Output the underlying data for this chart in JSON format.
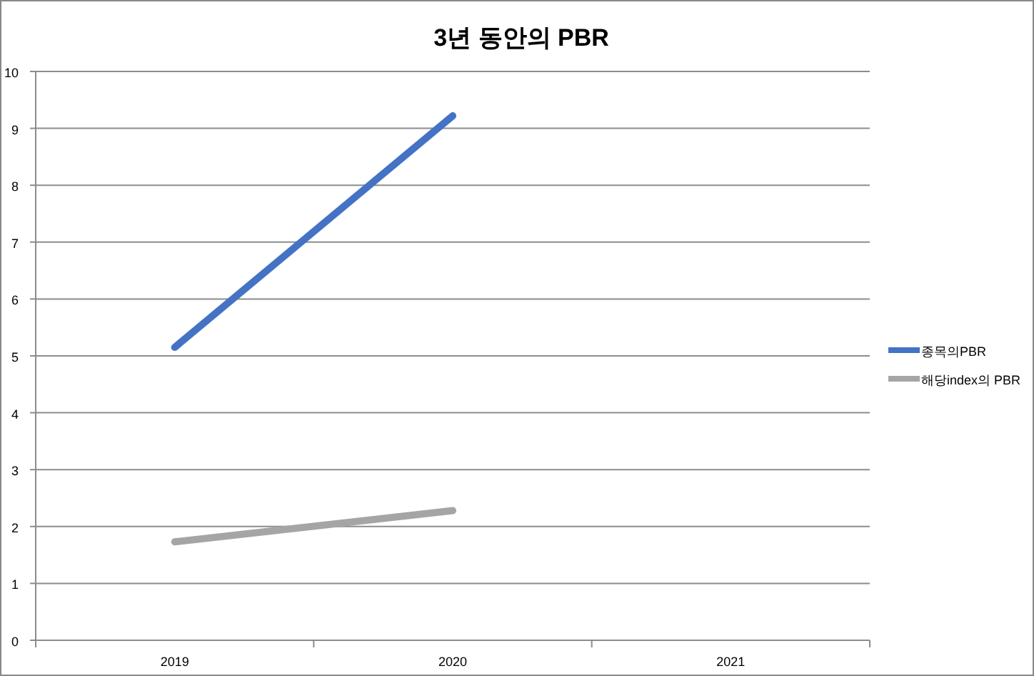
{
  "chart_data": {
    "type": "line",
    "title": "3년 동안의 PBR",
    "categories": [
      "2019",
      "2020",
      "2021"
    ],
    "series": [
      {
        "name": "종목의PBR",
        "color": "#4472c4",
        "values": [
          5.15,
          9.22,
          null
        ]
      },
      {
        "name": "해당index의 PBR",
        "color": "#a5a5a5",
        "values": [
          1.73,
          2.28,
          null
        ]
      }
    ],
    "ylim": [
      0,
      10
    ],
    "yticks": [
      0,
      1,
      2,
      3,
      4,
      5,
      6,
      7,
      8,
      9,
      10
    ],
    "grid": "y",
    "legend": "right",
    "marker": "none",
    "line_style": "solid"
  }
}
